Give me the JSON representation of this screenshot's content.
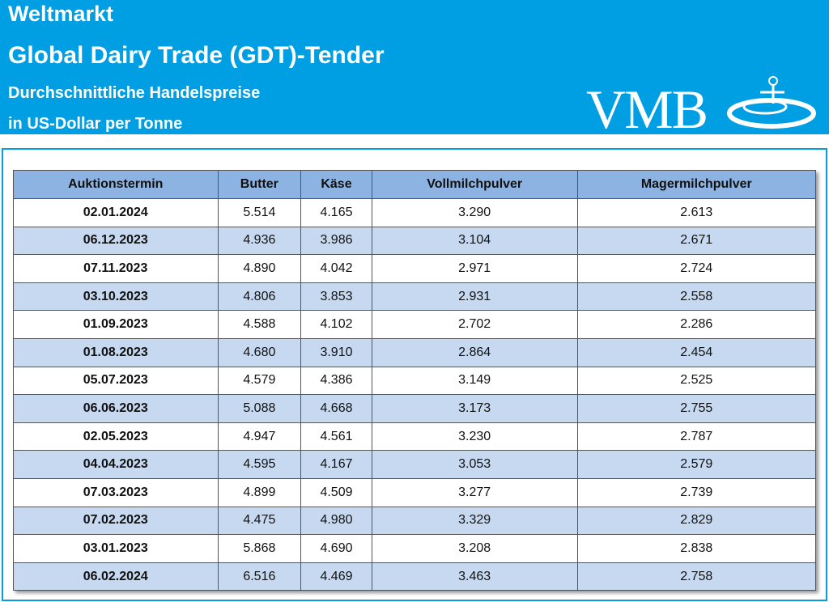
{
  "header": {
    "title": "Weltmarkt",
    "subtitle": "Global Dairy Trade (GDT)-Tender",
    "line3": "Durchschnittliche Handelspreise",
    "line4": "in US-Dollar per Tonne",
    "logo": "VMB"
  },
  "table": {
    "columns": [
      "Auktionstermin",
      "Butter",
      "Käse",
      "Vollmilchpulver",
      "Magermilchpulver"
    ],
    "rows": [
      [
        "02.01.2024",
        "5.514",
        "4.165",
        "3.290",
        "2.613"
      ],
      [
        "06.12.2023",
        "4.936",
        "3.986",
        "3.104",
        "2.671"
      ],
      [
        "07.11.2023",
        "4.890",
        "4.042",
        "2.971",
        "2.724"
      ],
      [
        "03.10.2023",
        "4.806",
        "3.853",
        "2.931",
        "2.558"
      ],
      [
        "01.09.2023",
        "4.588",
        "4.102",
        "2.702",
        "2.286"
      ],
      [
        "01.08.2023",
        "4.680",
        "3.910",
        "2.864",
        "2.454"
      ],
      [
        "05.07.2023",
        "4.579",
        "4.386",
        "3.149",
        "2.525"
      ],
      [
        "06.06.2023",
        "5.088",
        "4.668",
        "3.173",
        "2.755"
      ],
      [
        "02.05.2023",
        "4.947",
        "4.561",
        "3.230",
        "2.787"
      ],
      [
        "04.04.2023",
        "4.595",
        "4.167",
        "3.053",
        "2.579"
      ],
      [
        "07.03.2023",
        "4.899",
        "4.509",
        "3.277",
        "2.739"
      ],
      [
        "07.02.2023",
        "4.475",
        "4.980",
        "3.329",
        "2.829"
      ],
      [
        "03.01.2023",
        "5.868",
        "4.690",
        "3.208",
        "2.838"
      ],
      [
        "06.02.2024",
        "6.516",
        "4.469",
        "3.463",
        "2.758"
      ]
    ]
  }
}
